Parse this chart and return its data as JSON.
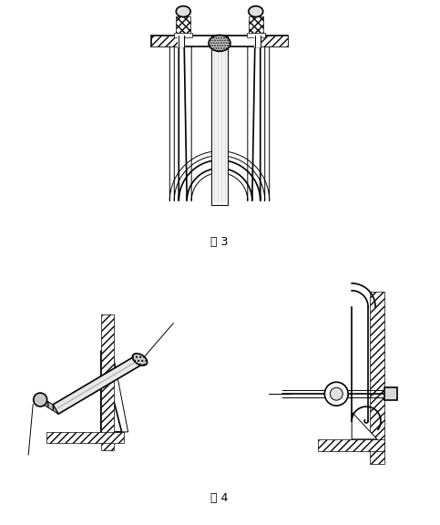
{
  "fig3_label": "图 3",
  "fig4_label": "图 4",
  "bg_color": "#ffffff",
  "line_color": "#000000",
  "fig_width": 4.83,
  "fig_height": 5.76,
  "dpi": 100
}
